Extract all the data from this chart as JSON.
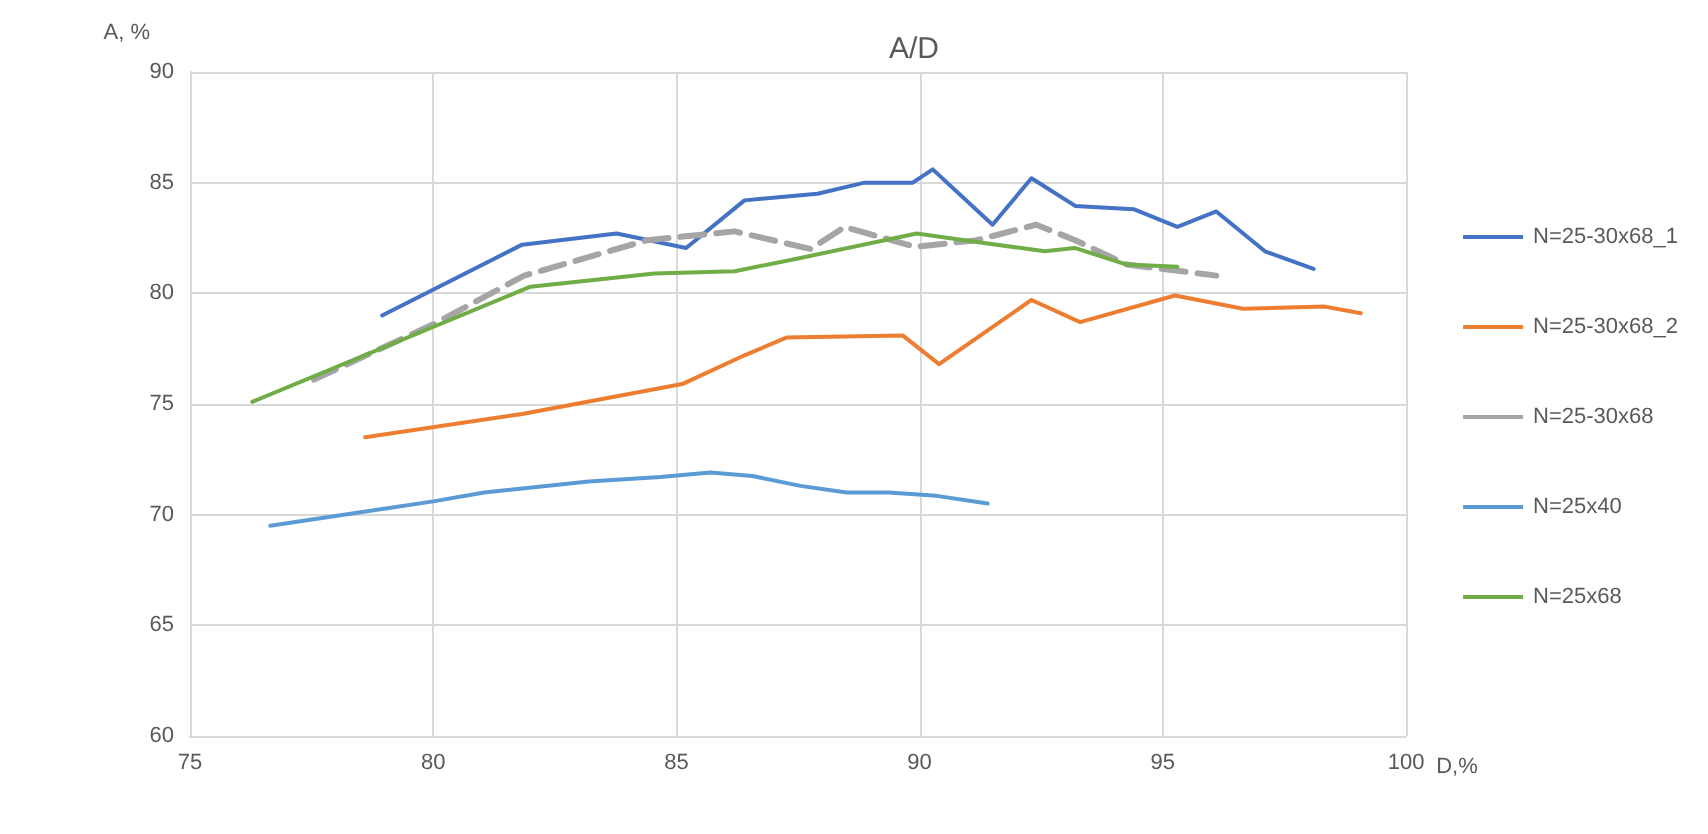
{
  "chart_data": {
    "type": "line",
    "title": "A/D",
    "xlabel": "D,%",
    "ylabel": "A, %",
    "xlim": [
      75,
      100
    ],
    "xticks": [
      75,
      80,
      85,
      90,
      95,
      100
    ],
    "ylim": [
      60,
      90
    ],
    "yticks": [
      60,
      65,
      70,
      75,
      80,
      85,
      90
    ],
    "grid": true,
    "legend": "right",
    "marker": "none",
    "series": [
      {
        "name": "N=25-30x68_1",
        "color": "#4472c4",
        "line_style": "solid",
        "x": [
          78.95,
          81.83,
          83.77,
          85.2,
          86.4,
          87.9,
          88.87,
          89.86,
          90.27,
          91.5,
          92.3,
          93.2,
          94.4,
          95.3,
          96.1,
          97.1,
          98.1
        ],
        "values": [
          79.0,
          82.2,
          82.7,
          82.05,
          84.2,
          84.5,
          85.0,
          85.0,
          85.6,
          83.1,
          85.2,
          83.95,
          83.8,
          83.0,
          83.7,
          81.9,
          81.1
        ]
      },
      {
        "name": "N=25-30x68_2",
        "color": "#ed7d31",
        "line_style": "solid",
        "x": [
          78.6,
          81.83,
          85.12,
          86.4,
          87.26,
          89.65,
          90.4,
          92.3,
          93.3,
          95.25,
          96.65,
          98.33,
          99.07
        ],
        "values": [
          73.5,
          74.55,
          75.9,
          77.2,
          78.0,
          78.1,
          76.8,
          79.7,
          78.7,
          79.9,
          79.3,
          79.4,
          79.1
        ]
      },
      {
        "name": "N=25-30x68",
        "color": "#a5a5a5",
        "line_style": "dashed",
        "x": [
          77.55,
          80.0,
          81.87,
          84.4,
          86.2,
          87.76,
          88.46,
          89.9,
          91.17,
          92.4,
          93.2,
          94.26,
          96.1
        ],
        "values": [
          76.1,
          78.6,
          80.8,
          82.4,
          82.8,
          82.0,
          83.0,
          82.1,
          82.4,
          83.1,
          82.4,
          81.3,
          80.8
        ]
      },
      {
        "name": "N=25x40",
        "color": "#5b9bd5",
        "line_style": "solid",
        "x": [
          76.65,
          80.0,
          81.05,
          83.2,
          84.67,
          85.7,
          86.56,
          87.55,
          88.5,
          89.36,
          90.35,
          91.4
        ],
        "values": [
          69.5,
          70.6,
          71.0,
          71.5,
          71.7,
          71.9,
          71.75,
          71.3,
          71.0,
          71.0,
          70.85,
          70.5
        ]
      },
      {
        "name": "N=25x68",
        "color": "#70ad47",
        "line_style": "solid",
        "x": [
          76.28,
          82.0,
          84.55,
          86.2,
          87.55,
          89.94,
          91.25,
          92.57,
          93.19,
          94.26,
          95.3
        ],
        "values": [
          75.1,
          80.3,
          80.9,
          81.0,
          81.6,
          82.7,
          82.3,
          81.9,
          82.05,
          81.3,
          81.2
        ]
      }
    ]
  }
}
